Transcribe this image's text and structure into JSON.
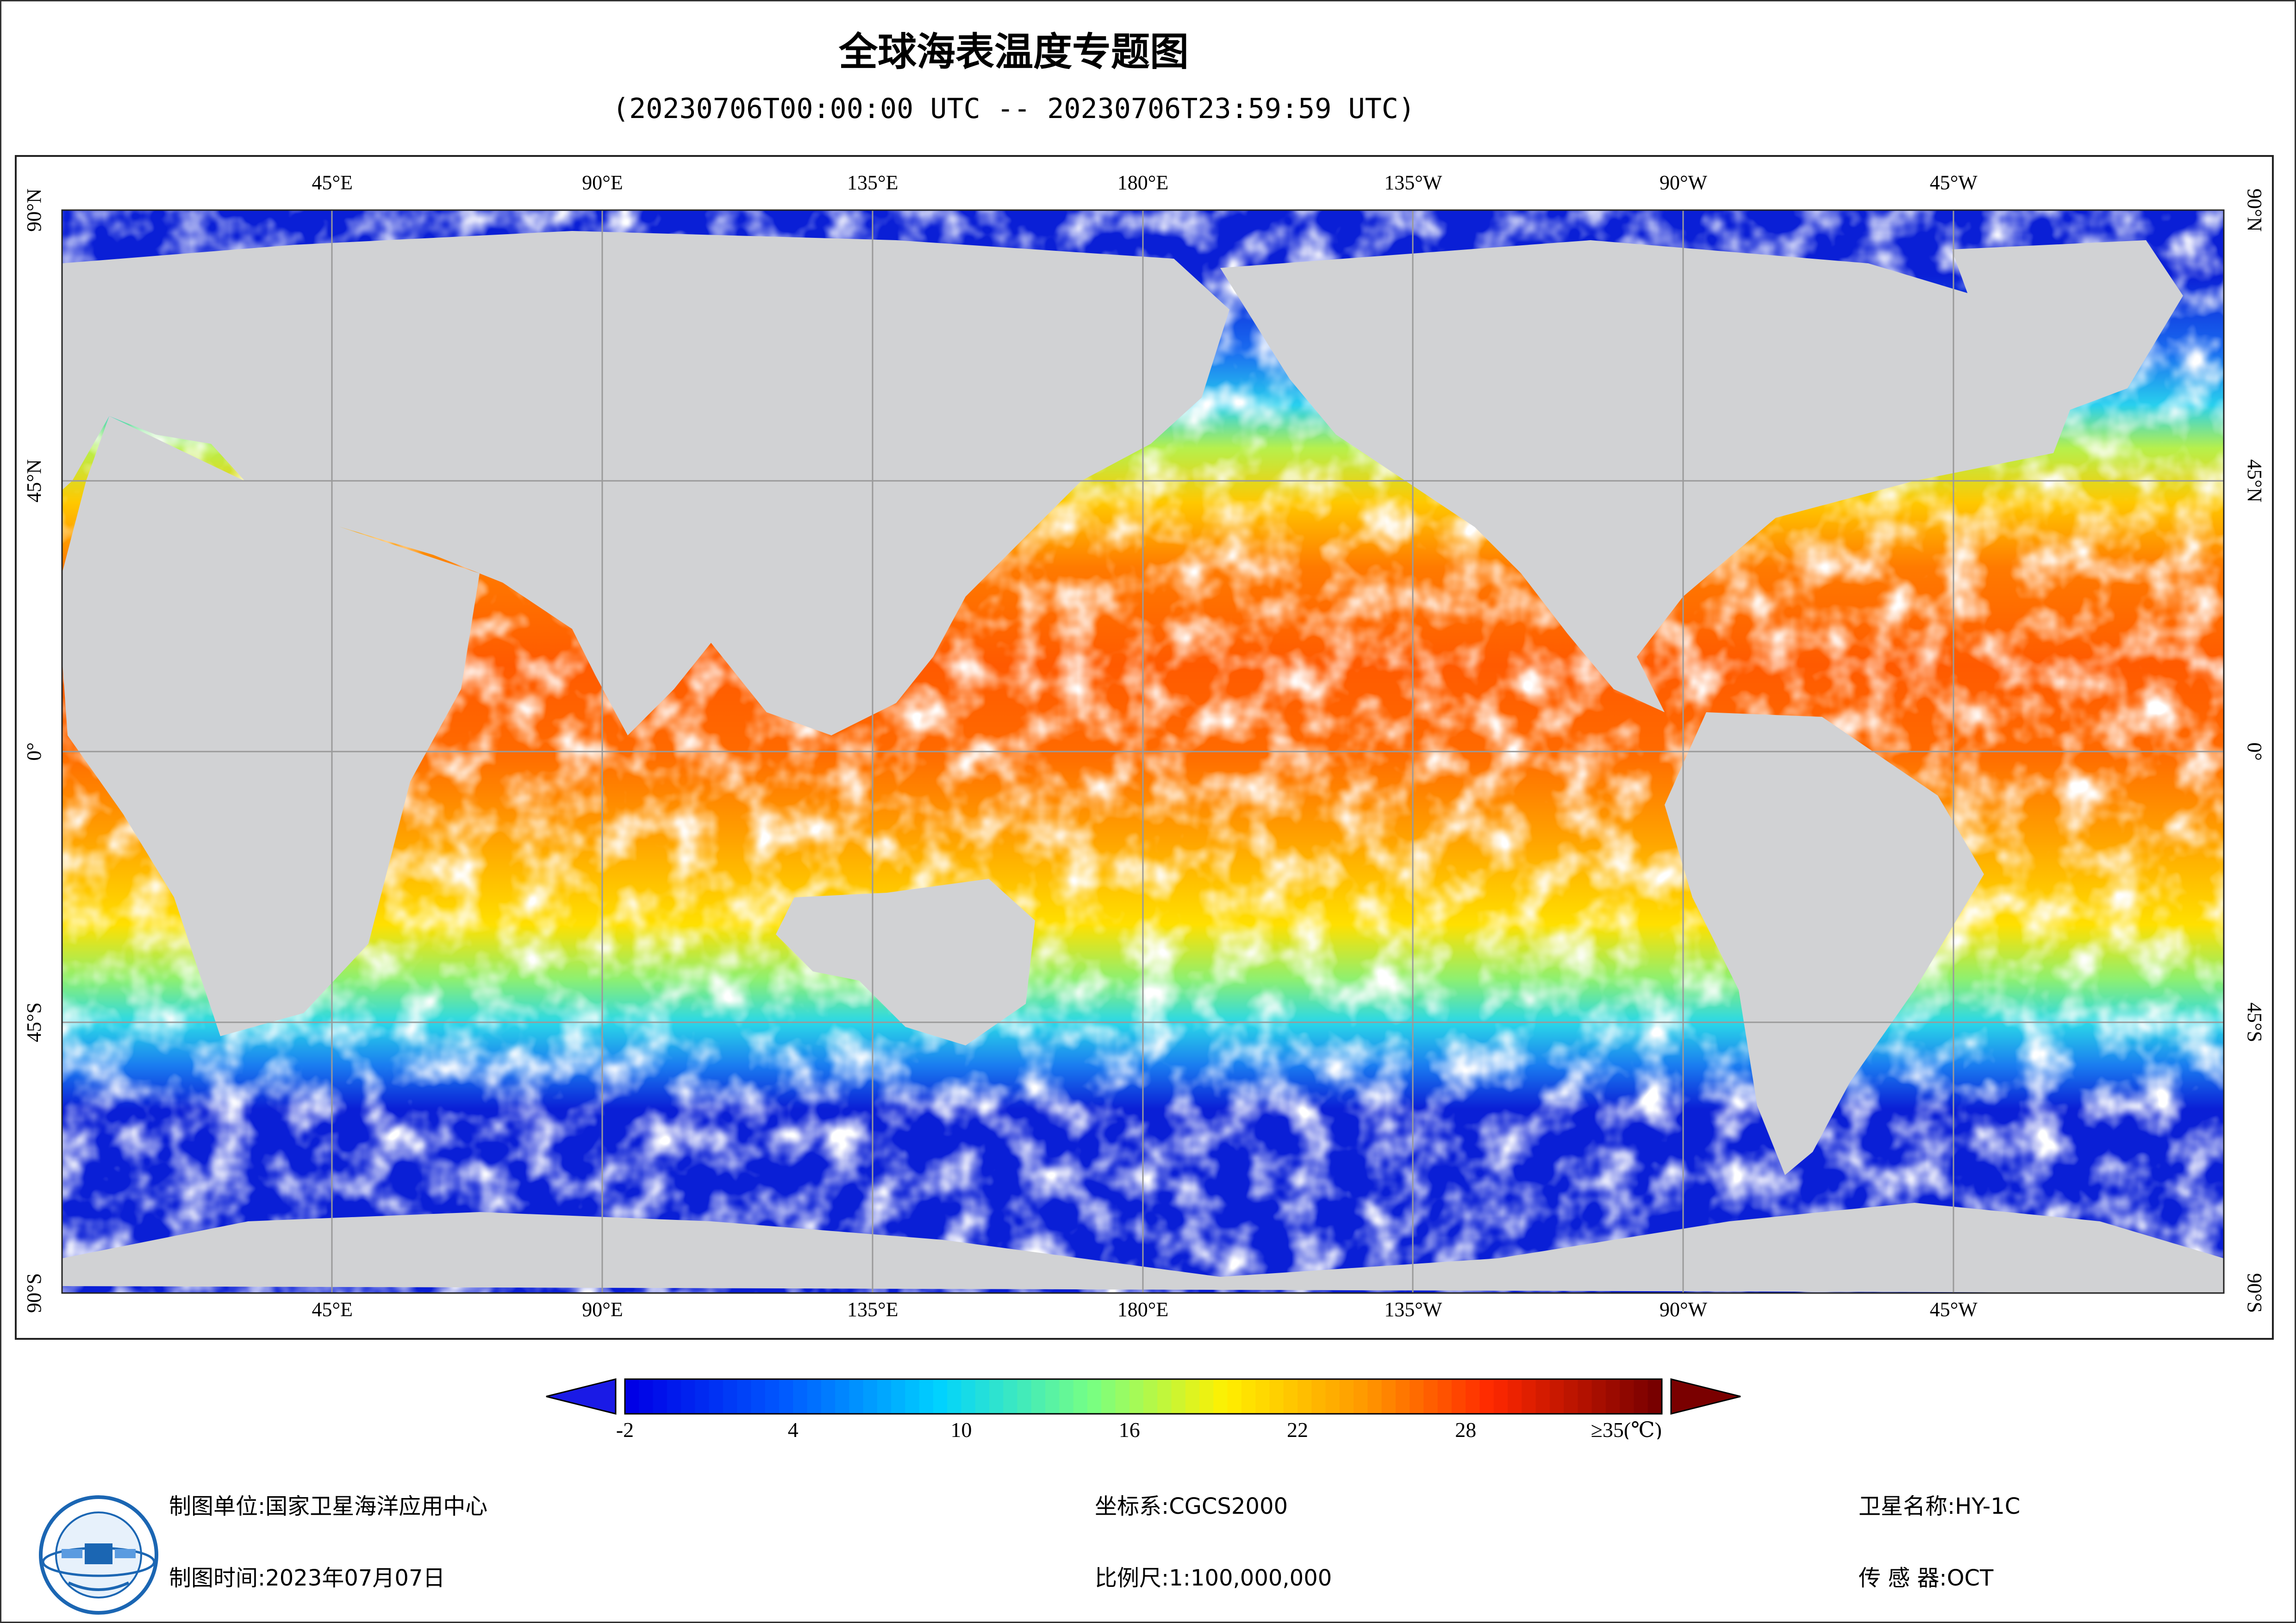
{
  "title": "全球海表温度专题图",
  "subtitle": "(20230706T00:00:00 UTC -- 20230706T23:59:59 UTC)",
  "map": {
    "projection": "equirectangular",
    "lon_range": [
      0,
      360
    ],
    "lat_range": [
      -90,
      90
    ],
    "graticule": true,
    "lon_labels": [
      "45°E",
      "90°E",
      "135°E",
      "180°E",
      "135°W",
      "90°W",
      "45°W"
    ],
    "lat_labels": [
      "90°N",
      "45°N",
      "0°",
      "45°S",
      "90°S"
    ],
    "colors": {
      "land": "#d1d2d4",
      "cloud": "#ffffff",
      "ice": "#d8d8d8",
      "grid": "#9a9a9a",
      "polar_cold": "#0a1fd6"
    }
  },
  "colorbar": {
    "tick_labels": [
      "-2",
      "4",
      "10",
      "16",
      "22",
      "28",
      "≥35(℃)"
    ],
    "tick_values": [
      -2,
      4,
      10,
      16,
      22,
      28,
      35
    ],
    "range": [
      -2,
      35
    ],
    "under_color": "#1a1ae6",
    "over_color": "#7a0000"
  },
  "footer": {
    "unit_label": "制图单位:",
    "unit_value": "国家卫星海洋应用中心",
    "time_label": "制图时间:",
    "time_value": "2023年07月07日",
    "crs_label": "坐标系:",
    "crs_value": "CGCS2000",
    "scale_label": "比例尺:",
    "scale_value": "1:100,000,000",
    "sat_label": "卫星名称:",
    "sat_value": "HY-1C",
    "sensor_label": "传 感 器:",
    "sensor_value": "OCT"
  },
  "logo": {
    "icon": "nsoas-logo-icon"
  }
}
